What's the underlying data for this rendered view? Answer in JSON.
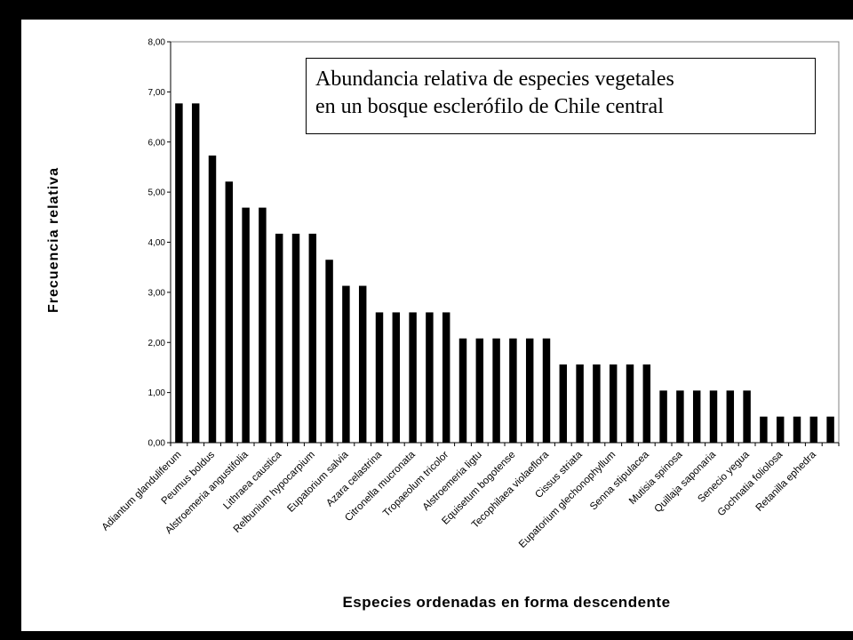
{
  "chart_data": {
    "type": "bar",
    "title_lines": [
      "Abundancia relativa de especies vegetales",
      "en un bosque esclerófilo de Chile central"
    ],
    "xlabel": "Especies ordenadas en forma descendente",
    "ylabel": "Frecuencia relativa",
    "ylim": [
      0,
      8
    ],
    "y_ticks": [
      "0,00",
      "1,00",
      "2,00",
      "3,00",
      "4,00",
      "5,00",
      "6,00",
      "7,00",
      "8,00"
    ],
    "grid": false,
    "bar_color": "#000000",
    "categories": [
      "Adiantum glanduliferum",
      "",
      "Peumus boldus",
      "",
      "Alstroemeria angustifolia",
      "",
      "Lithraea caustica",
      "",
      "Relbunium hypocarpium",
      "",
      "Eupatorium salvia",
      "",
      "Azara celastrina",
      "",
      "Citronella mucronata",
      "",
      "Tropaeolum tricolor",
      "",
      "Alstroemeria ligtu",
      "",
      "Equisetum bogotense",
      "",
      "Tecophilaea violaeflora",
      "",
      "Cissus striata",
      "",
      "Eupatorium glechonophyllum",
      "",
      "Senna stipulacea",
      "",
      "Mutisia spinosa",
      "",
      "Quillaja saponaria",
      "",
      "Senecio yegua",
      "",
      "Gochnatia foliolosa",
      "",
      "Retanilla ephedra",
      ""
    ],
    "values": [
      6.77,
      6.77,
      5.73,
      5.21,
      4.69,
      4.69,
      4.17,
      4.17,
      4.17,
      3.65,
      3.13,
      3.13,
      2.6,
      2.6,
      2.6,
      2.6,
      2.6,
      2.08,
      2.08,
      2.08,
      2.08,
      2.08,
      2.08,
      1.56,
      1.56,
      1.56,
      1.56,
      1.56,
      1.56,
      1.04,
      1.04,
      1.04,
      1.04,
      1.04,
      1.04,
      0.52,
      0.52,
      0.52,
      0.52,
      0.52
    ]
  }
}
